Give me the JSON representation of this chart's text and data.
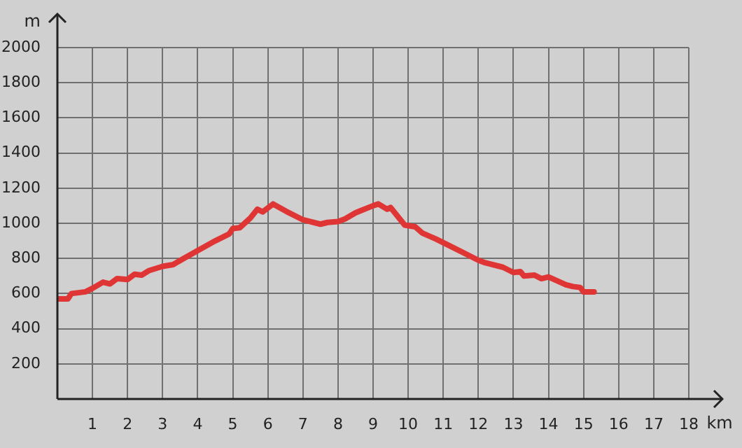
{
  "chart_data": {
    "type": "line",
    "xlabel": "km",
    "ylabel": "m",
    "x": [
      0,
      0.3,
      0.4,
      0.8,
      1.0,
      1.3,
      1.5,
      1.7,
      2.0,
      2.2,
      2.4,
      2.6,
      3.0,
      3.3,
      3.6,
      4.0,
      4.5,
      4.9,
      5.0,
      5.2,
      5.5,
      5.7,
      5.85,
      6.15,
      6.6,
      7.0,
      7.5,
      7.7,
      8.0,
      8.2,
      8.5,
      9.0,
      9.15,
      9.4,
      9.5,
      9.7,
      9.9,
      10.2,
      10.4,
      10.8,
      11.3,
      12.0,
      12.2,
      12.7,
      12.9,
      13.0,
      13.2,
      13.3,
      13.6,
      13.8,
      14.0,
      14.5,
      14.7,
      14.9,
      15.0,
      15.3
    ],
    "series": [
      {
        "color": "#e03535",
        "values": [
          570,
          570,
          600,
          610,
          630,
          665,
          655,
          685,
          680,
          710,
          705,
          730,
          755,
          765,
          800,
          845,
          900,
          940,
          970,
          975,
          1030,
          1080,
          1065,
          1110,
          1060,
          1020,
          995,
          1005,
          1010,
          1025,
          1060,
          1100,
          1110,
          1080,
          1090,
          1040,
          990,
          980,
          945,
          910,
          860,
          790,
          775,
          750,
          730,
          720,
          725,
          700,
          705,
          685,
          695,
          650,
          640,
          635,
          610,
          610
        ]
      }
    ],
    "xlim": [
      0,
      18
    ],
    "xticks": [
      {
        "value": 0,
        "label": null
      },
      1,
      2,
      3,
      4,
      5,
      6,
      7,
      8,
      9,
      10,
      11,
      12,
      13,
      14,
      15,
      16,
      17,
      18
    ],
    "ylim": [
      0,
      2000
    ],
    "yticks": [
      {
        "value": 0,
        "label": null
      },
      200,
      400,
      600,
      800,
      1000,
      1200,
      1400,
      1600,
      1800,
      2000
    ],
    "grid": true,
    "legend": false,
    "marker": "none",
    "line_style": "solid"
  }
}
